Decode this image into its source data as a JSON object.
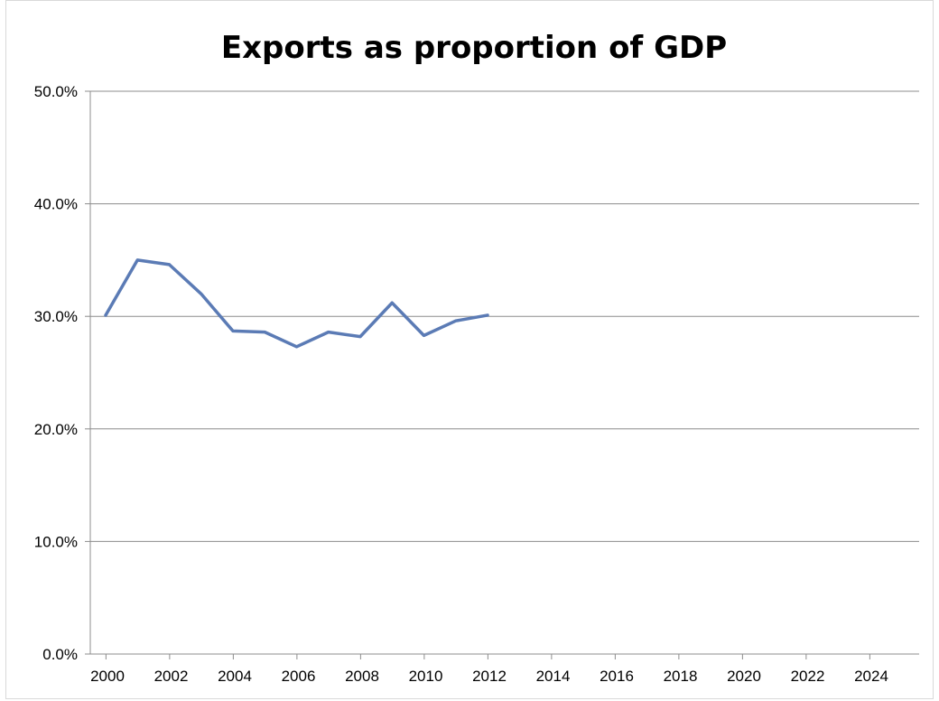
{
  "chart_data": {
    "type": "line",
    "title": "Exports as proportion of GDP",
    "xlabel": "",
    "ylabel": "",
    "xlim": [
      2000,
      2025
    ],
    "ylim": [
      0,
      50
    ],
    "x_ticks": [
      "2000",
      "2002",
      "2004",
      "2006",
      "2008",
      "2010",
      "2012",
      "2014",
      "2016",
      "2018",
      "2020",
      "2022",
      "2024"
    ],
    "y_ticks": [
      "0.0%",
      "10.0%",
      "20.0%",
      "30.0%",
      "40.0%",
      "50.0%"
    ],
    "y_tick_values": [
      0,
      10,
      20,
      30,
      40,
      50
    ],
    "x_tick_values": [
      2000,
      2002,
      2004,
      2006,
      2008,
      2010,
      2012,
      2014,
      2016,
      2018,
      2020,
      2022,
      2024
    ],
    "grid": "horizontal",
    "legend": "none",
    "series": [
      {
        "color": "#5b7bb5",
        "x": [
          2000,
          2001,
          2002,
          2003,
          2004,
          2005,
          2006,
          2007,
          2008,
          2009,
          2010,
          2011,
          2012
        ],
        "values": [
          30.1,
          35.0,
          34.6,
          32.0,
          28.7,
          28.6,
          27.3,
          28.6,
          28.2,
          31.2,
          28.3,
          29.6,
          30.1
        ]
      }
    ]
  }
}
